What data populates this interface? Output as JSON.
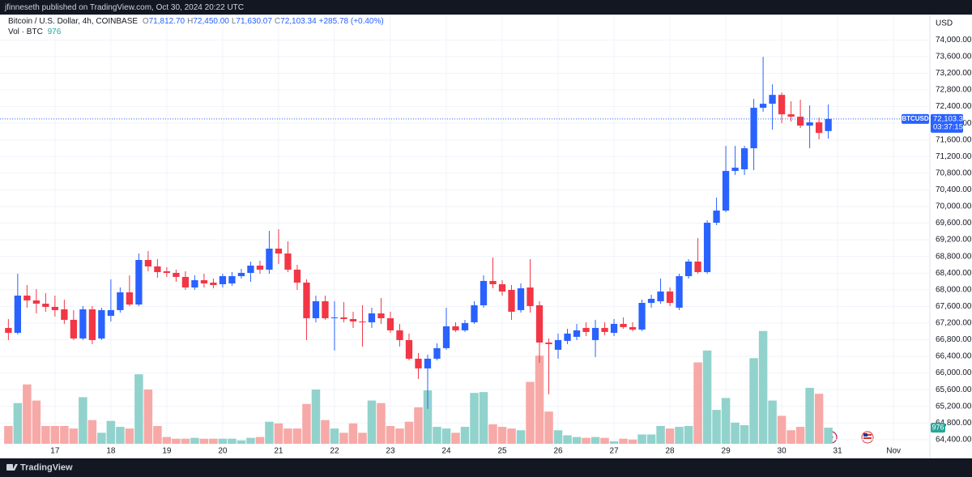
{
  "header": {
    "publisher": "jfinneseth published on TradingView.com, Oct 30, 2024 20:22 UTC"
  },
  "footer": {
    "logo": "TradingView"
  },
  "chart_data": {
    "type": "candlestick",
    "title": "Bitcoin / U.S. Dollar, 4h, COINBASE",
    "legend_ohlc": [
      {
        "key": "O",
        "value": "71,812.70"
      },
      {
        "key": "H",
        "value": "72,450.00"
      },
      {
        "key": "L",
        "value": "71,630.07"
      },
      {
        "key": "C",
        "value": "72,103.34"
      }
    ],
    "change": "+285.78 (+0.40%)",
    "volume_title": "Vol · BTC",
    "currency": "USD",
    "symbol": "BTCUSD",
    "last_price_label": "72,103.34",
    "countdown": "03:37:15",
    "xlim": [
      -0.9,
      98.9
    ],
    "xticks": [
      {
        "value": 5,
        "label": "17"
      },
      {
        "value": 11,
        "label": "18"
      },
      {
        "value": 17,
        "label": "19"
      },
      {
        "value": 23,
        "label": "20"
      },
      {
        "value": 29,
        "label": "21"
      },
      {
        "value": 35,
        "label": "22"
      },
      {
        "value": 41,
        "label": "23"
      },
      {
        "value": 47,
        "label": "24"
      },
      {
        "value": 53,
        "label": "25"
      },
      {
        "value": 59,
        "label": "26"
      },
      {
        "value": 65,
        "label": "27"
      },
      {
        "value": 71,
        "label": "28"
      },
      {
        "value": 77,
        "label": "29"
      },
      {
        "value": 83,
        "label": "30"
      },
      {
        "value": 89,
        "label": "31"
      },
      {
        "value": 95,
        "label": "Nov"
      }
    ],
    "ylim": [
      64300,
      74610
    ],
    "yticks": [
      {
        "value": 64400,
        "label": "64,400.00"
      },
      {
        "value": 64800,
        "label": "64,800.00"
      },
      {
        "value": 65200,
        "label": "65,200.00"
      },
      {
        "value": 65600,
        "label": "65,600.00"
      },
      {
        "value": 66000,
        "label": "66,000.00"
      },
      {
        "value": 66400,
        "label": "66,400.00"
      },
      {
        "value": 66800,
        "label": "66,800.00"
      },
      {
        "value": 67200,
        "label": "67,200.00"
      },
      {
        "value": 67600,
        "label": "67,600.00"
      },
      {
        "value": 68000,
        "label": "68,000.00"
      },
      {
        "value": 68400,
        "label": "68,400.00"
      },
      {
        "value": 68800,
        "label": "68,800.00"
      },
      {
        "value": 69200,
        "label": "69,200.00"
      },
      {
        "value": 69600,
        "label": "69,600.00"
      },
      {
        "value": 70000,
        "label": "70,000.00"
      },
      {
        "value": 70400,
        "label": "70,400.00"
      },
      {
        "value": 70800,
        "label": "70,800.00"
      },
      {
        "value": 71200,
        "label": "71,200.00"
      },
      {
        "value": 71600,
        "label": "71,600.00"
      },
      {
        "value": 72000,
        "label": "72,000.00"
      },
      {
        "value": 72400,
        "label": "72,400.00"
      },
      {
        "value": 72800,
        "label": "72,800.00"
      },
      {
        "value": 73200,
        "label": "73,200.00"
      },
      {
        "value": 73600,
        "label": "73,600.00"
      },
      {
        "value": 74000,
        "label": "74,000.00"
      }
    ],
    "y2lim": [
      0,
      26000
    ],
    "grid": true,
    "up_color": "#2962ff",
    "down_color": "#f23645",
    "volume_up_color": "#92d2cc",
    "volume_down_color": "#f7a9a7",
    "open": [
      67083,
      66966,
      67860,
      67744,
      67666,
      67588,
      67530,
      67277,
      66830,
      67530,
      66830,
      67374,
      67511,
      67938,
      67646,
      68716,
      68561,
      68444,
      68405,
      68308,
      68055,
      68230,
      68172,
      68133,
      68152,
      68327,
      68405,
      68580,
      68483,
      68988,
      68871,
      68483,
      68172,
      67316,
      67724,
      67316,
      67336,
      67297,
      67238,
      67219,
      67433,
      67316,
      67025,
      66791,
      66344,
      66111,
      66344,
      66597,
      67122,
      67025,
      67219,
      67627,
      68211,
      68133,
      67997,
      67511,
      68055,
      67627,
      66733,
      66558,
      66772,
      66869,
      67083,
      66791,
      67083,
      66966,
      67180,
      67102,
      67044,
      67685,
      67724,
      67958,
      67569,
      68327,
      68677,
      68424,
      69610,
      69902,
      70854,
      70893,
      71399,
      72371,
      72468,
      72681,
      72215,
      72157,
      71943,
      72021,
      71812.7
    ],
    "high": [
      67297,
      68385,
      68113,
      68016,
      67919,
      67860,
      67763,
      67511,
      67608,
      67608,
      67569,
      68250,
      68055,
      68346,
      68871,
      68930,
      68735,
      68541,
      68483,
      68444,
      68346,
      68385,
      68269,
      68385,
      68424,
      68502,
      68677,
      68696,
      69415,
      69454,
      69163,
      68599,
      68250,
      67860,
      67860,
      67724,
      67705,
      67472,
      67627,
      67569,
      67802,
      67472,
      67180,
      66947,
      66480,
      66441,
      66713,
      67569,
      67219,
      67277,
      67724,
      68346,
      68774,
      68230,
      68113,
      68152,
      68735,
      67724,
      66830,
      66947,
      67063,
      67180,
      67219,
      67277,
      67219,
      67297,
      67336,
      67219,
      67763,
      67880,
      68269,
      68055,
      68385,
      68735,
      69241,
      69668,
      70213,
      71457,
      71457,
      71457,
      72584,
      73595,
      72934,
      72740,
      72526,
      72565,
      72429,
      72137,
      72450
    ],
    "low": [
      66791,
      66927,
      67569,
      67433,
      67472,
      67355,
      67180,
      66791,
      66791,
      66694,
      66791,
      67238,
      67452,
      67608,
      67608,
      68444,
      68288,
      68308,
      68191,
      67997,
      67997,
      68055,
      68036,
      68055,
      68094,
      68269,
      68191,
      68385,
      68385,
      68619,
      68424,
      67997,
      66791,
      67219,
      67277,
      66539,
      67219,
      67083,
      66636,
      67083,
      67180,
      66966,
      66636,
      66305,
      65858,
      65139,
      66305,
      66558,
      66986,
      66986,
      67180,
      67569,
      68036,
      67860,
      67277,
      67452,
      67452,
      66247,
      65489,
      66344,
      66694,
      66791,
      66888,
      66383,
      66908,
      66888,
      67063,
      67005,
      67005,
      67569,
      67666,
      67608,
      67511,
      68269,
      68385,
      68385,
      69552,
      69863,
      70757,
      70757,
      70874,
      72273,
      71846,
      72001,
      72040,
      71884,
      71399,
      71612,
      71630.07
    ],
    "close": [
      66966,
      67860,
      67744,
      67666,
      67588,
      67511,
      67277,
      66830,
      67530,
      66791,
      67511,
      67511,
      67938,
      67646,
      68716,
      68561,
      68424,
      68405,
      68308,
      68055,
      68230,
      68152,
      68113,
      68327,
      68327,
      68405,
      68580,
      68483,
      68988,
      68871,
      68483,
      68172,
      67316,
      67724,
      67316,
      67336,
      67297,
      67238,
      67219,
      67433,
      67316,
      67025,
      66791,
      66344,
      66111,
      66344,
      66597,
      67122,
      67025,
      67200,
      67627,
      68211,
      68133,
      67958,
      67472,
      68036,
      67608,
      66733,
      66694,
      66791,
      66947,
      67025,
      66986,
      67083,
      66986,
      67180,
      67102,
      67044,
      67685,
      67782,
      67958,
      67685,
      68327,
      68677,
      68424,
      69610,
      69902,
      70854,
      70932,
      71399,
      72371,
      72468,
      72681,
      72215,
      72157,
      71943,
      72021,
      71768,
      72103.34
    ],
    "volume": [
      1079,
      2466,
      3596,
      2620,
      1079,
      1079,
      1079,
      925,
      2825,
      1438,
      668,
      1387,
      1027,
      925,
      4212,
      3288,
      1079,
      411,
      308,
      308,
      360,
      308,
      308,
      308,
      308,
      205,
      360,
      411,
      1336,
      1233,
      925,
      925,
      2414,
      3288,
      1438,
      925,
      668,
      1233,
      668,
      2620,
      2466,
      1079,
      925,
      1336,
      2209,
      3236,
      1027,
      925,
      668,
      1027,
      3082,
      3134,
      1182,
      1027,
      925,
      822,
      3750,
      5342,
      1952,
      822,
      514,
      411,
      360,
      411,
      360,
      154,
      308,
      257,
      565,
      565,
      1079,
      925,
      1027,
      1079,
      4932,
      5651,
      2055,
      2774,
      1284,
      1130,
      5188,
      6832,
      2620,
      1695,
      822,
      1027,
      3390,
      3031,
      976
    ]
  }
}
